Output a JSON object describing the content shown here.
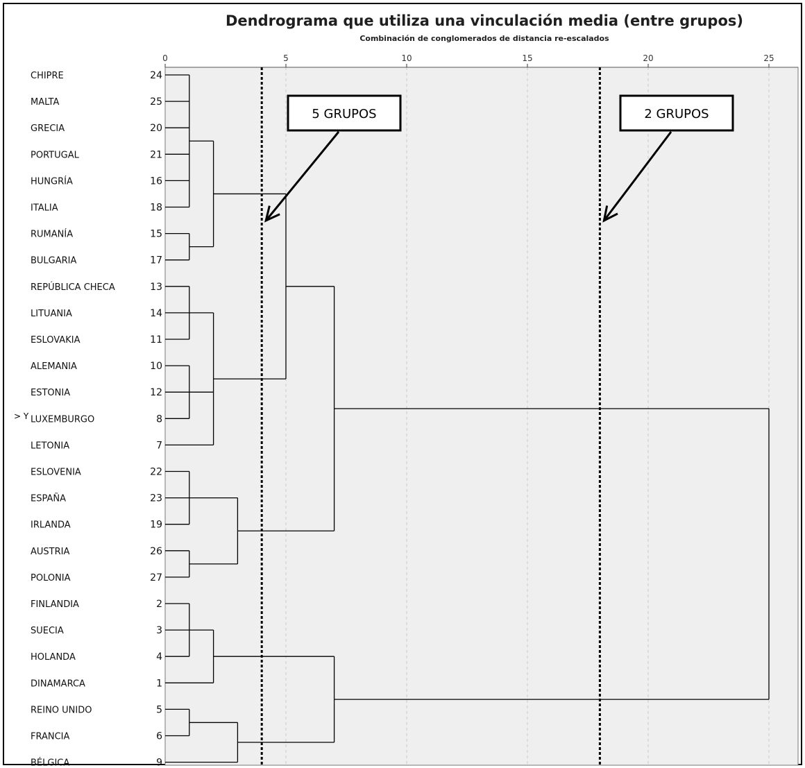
{
  "chart_data": {
    "type": "dendrogram",
    "title": "Dendrograma que utiliza una vinculación media (entre grupos)",
    "xlabel": "Combinación de conglomerados de distancia re-escalados",
    "xlim": [
      0,
      25
    ],
    "xticks": [
      0,
      5,
      10,
      15,
      20,
      25
    ],
    "grid": true,
    "y_marker": "Y",
    "leaves": [
      {
        "label": "CHIPRE",
        "id": "24"
      },
      {
        "label": "MALTA",
        "id": "25"
      },
      {
        "label": "GRECIA",
        "id": "20"
      },
      {
        "label": "PORTUGAL",
        "id": "21"
      },
      {
        "label": "HUNGRÍA",
        "id": "16"
      },
      {
        "label": "ITALIA",
        "id": "18"
      },
      {
        "label": "RUMANÍA",
        "id": "15"
      },
      {
        "label": "BULGARIA",
        "id": "17"
      },
      {
        "label": "REPÚBLICA CHECA",
        "id": "13"
      },
      {
        "label": "LITUANIA",
        "id": "14"
      },
      {
        "label": "ESLOVAKIA",
        "id": "11"
      },
      {
        "label": "ALEMANIA",
        "id": "10"
      },
      {
        "label": "ESTONIA",
        "id": "12"
      },
      {
        "label": "LUXEMBURGO",
        "id": "8"
      },
      {
        "label": "LETONIA",
        "id": "7"
      },
      {
        "label": "ESLOVENIA",
        "id": "22"
      },
      {
        "label": "ESPAÑA",
        "id": "23"
      },
      {
        "label": "IRLANDA",
        "id": "19"
      },
      {
        "label": "AUSTRIA",
        "id": "26"
      },
      {
        "label": "POLONIA",
        "id": "27"
      },
      {
        "label": "FINLANDIA",
        "id": "2"
      },
      {
        "label": "SUECIA",
        "id": "3"
      },
      {
        "label": "HOLANDA",
        "id": "4"
      },
      {
        "label": "DINAMARCA",
        "id": "1"
      },
      {
        "label": "REINO UNIDO",
        "id": "5"
      },
      {
        "label": "FRANCIA",
        "id": "6"
      },
      {
        "label": "BÉLGICA",
        "id": "9"
      }
    ],
    "merges": [
      {
        "children": [
          "L0",
          "L1",
          "L2",
          "L3",
          "L4",
          "L5"
        ],
        "height": 1
      },
      {
        "children": [
          "L6",
          "L7"
        ],
        "height": 1
      },
      {
        "children": [
          "L8",
          "L9",
          "L10"
        ],
        "height": 1
      },
      {
        "children": [
          "L11",
          "L12",
          "L13"
        ],
        "height": 1
      },
      {
        "children": [
          "L15",
          "L16",
          "L17"
        ],
        "height": 1
      },
      {
        "children": [
          "L18",
          "L19"
        ],
        "height": 1
      },
      {
        "children": [
          "L20",
          "L21",
          "L22"
        ],
        "height": 1
      },
      {
        "children": [
          "L24",
          "L25"
        ],
        "height": 1
      },
      {
        "children": [
          "M0",
          "M1"
        ],
        "height": 2
      },
      {
        "children": [
          "M2",
          "M3",
          "L14"
        ],
        "height": 2
      },
      {
        "children": [
          "M6",
          "L23"
        ],
        "height": 2
      },
      {
        "children": [
          "M4",
          "M5"
        ],
        "height": 3
      },
      {
        "children": [
          "M7",
          "L26"
        ],
        "height": 3
      },
      {
        "children": [
          "M8",
          "M9"
        ],
        "height": 5
      },
      {
        "children": [
          "M13",
          "M11"
        ],
        "height": 7
      },
      {
        "children": [
          "M10",
          "M12"
        ],
        "height": 7
      },
      {
        "children": [
          "M14",
          "M15"
        ],
        "height": 25
      }
    ],
    "cut_lines": [
      {
        "x": 4,
        "label": "5 GRUPOS"
      },
      {
        "x": 18,
        "label": "2 GRUPOS"
      }
    ]
  }
}
